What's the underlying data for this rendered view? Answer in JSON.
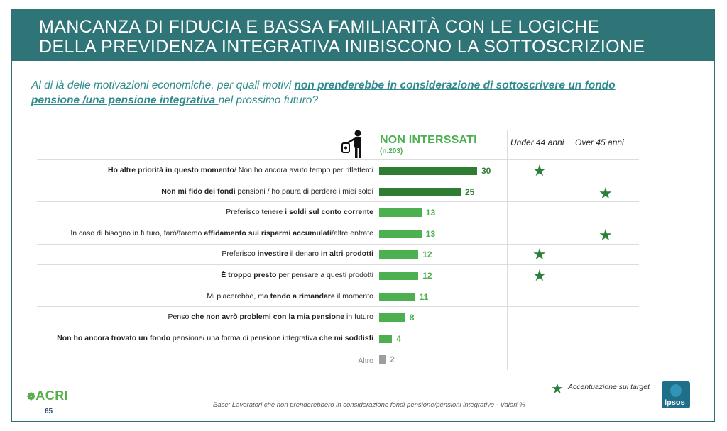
{
  "header": {
    "title_line1": "MANCANZA DI FIDUCIA E BASSA FAMILIARITÀ CON LE LOGICHE",
    "title_line2": "DELLA PREVIDENZA INTEGRATIVA INIBISCONO LA SOTTOSCRIZIONE"
  },
  "question": {
    "part1": "Al di là delle motivazioni economiche,  per quali motivi ",
    "emphasis": "non prenderebbe in  considerazione di sottoscrivere un fondo pensione /una pensione integrativa ",
    "part2": "nel prossimo futuro?"
  },
  "columns": {
    "main": "NON INTERSSATI",
    "main_sub": "(n.203)",
    "under44": "Under 44 anni",
    "over45": "Over 45 anni"
  },
  "chart_data": {
    "type": "bar",
    "orientation": "horizontal",
    "categories": [
      "Ho altre priorità in questo momento/ Non ho ancora avuto tempo per rifletterci",
      "Non mi fido dei fondi pensioni / ho paura di perdere i miei soldi",
      "Preferisco tenere i soldi sul conto corrente",
      "In caso di bisogno in futuro, farò/faremo affidamento sui risparmi accumulati/altre entrate",
      "Preferisco investire il denaro in altri prodotti",
      "È troppo presto per pensare a questi prodotti",
      "Mi piacerebbe, ma tendo a rimandare il momento",
      "Penso che non avrò problemi con la mia pensione in futuro",
      "Non ho ancora trovato un fondo pensione/ una forma di pensione integrativa che mi soddisfi",
      "Altro"
    ],
    "values": [
      30,
      25,
      13,
      13,
      12,
      12,
      11,
      8,
      4,
      2
    ],
    "colors": [
      "#2e7d32",
      "#2e7d32",
      "#4caf50",
      "#4caf50",
      "#4caf50",
      "#4caf50",
      "#4caf50",
      "#4caf50",
      "#4caf50",
      "#9e9e9e"
    ],
    "under44_star": [
      true,
      false,
      false,
      false,
      true,
      true,
      false,
      false,
      false,
      false
    ],
    "over45_star": [
      false,
      true,
      false,
      true,
      false,
      false,
      false,
      false,
      false,
      false
    ]
  },
  "rows": [
    {
      "parts": [
        {
          "t": "Ho altre priorità in questo momento",
          "b": true
        },
        {
          "t": "/ Non ho ancora avuto tempo per rifletterci",
          "b": false
        }
      ]
    },
    {
      "parts": [
        {
          "t": "Non mi fido dei fondi",
          "b": true
        },
        {
          "t": " pensioni / ho paura di perdere i miei soldi",
          "b": false
        }
      ]
    },
    {
      "parts": [
        {
          "t": "Preferisco tenere ",
          "b": false
        },
        {
          "t": "i soldi sul conto corrente",
          "b": true
        }
      ]
    },
    {
      "parts": [
        {
          "t": "In caso di bisogno in futuro, farò/faremo ",
          "b": false
        },
        {
          "t": "affidamento sui risparmi accumulati",
          "b": true
        },
        {
          "t": "/altre entrate",
          "b": false
        }
      ]
    },
    {
      "parts": [
        {
          "t": "Preferisco ",
          "b": false
        },
        {
          "t": "investire",
          "b": true
        },
        {
          "t": " il denaro ",
          "b": false
        },
        {
          "t": "in altri prodotti",
          "b": true
        }
      ]
    },
    {
      "parts": [
        {
          "t": "È troppo presto",
          "b": true
        },
        {
          "t": " per pensare a questi prodotti",
          "b": false
        }
      ]
    },
    {
      "parts": [
        {
          "t": "Mi piacerebbe, ma ",
          "b": false
        },
        {
          "t": "tendo a rimandare",
          "b": true
        },
        {
          "t": " il momento",
          "b": false
        }
      ]
    },
    {
      "parts": [
        {
          "t": "Penso ",
          "b": false
        },
        {
          "t": "che non avrò problemi con la mia pensione",
          "b": true
        },
        {
          "t": " in futuro",
          "b": false
        }
      ]
    },
    {
      "parts": [
        {
          "t": "Non ho ancora trovato un fondo",
          "b": true
        },
        {
          "t": " pensione/ una forma di pensione integrativa ",
          "b": false
        },
        {
          "t": "che mi soddisfi",
          "b": true
        }
      ]
    },
    {
      "parts": [
        {
          "t": "Altro",
          "b": false
        }
      ]
    }
  ],
  "legend": {
    "star_label": "Accentuazione sui target"
  },
  "footer": {
    "base": "Base: Lavoratori che non prenderebbero in considerazione fondi pensione/pensioni integrative - Valori %",
    "logo": "ACRI",
    "page": "65",
    "brand": "Ipsos"
  },
  "icons": {
    "person": "person-with-trash-icon",
    "star": "star-icon",
    "acri_logo": "acri-logo-icon"
  }
}
